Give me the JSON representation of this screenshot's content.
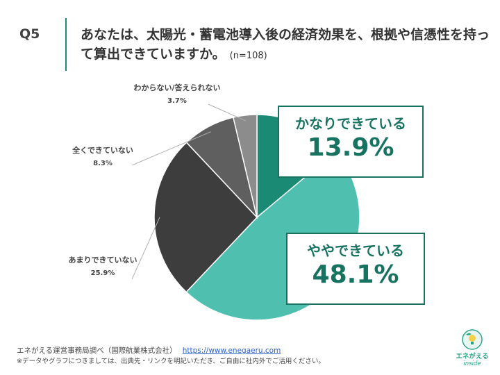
{
  "header": {
    "q_number": "Q5",
    "question": "あなたは、太陽光・蓄電池導入後の経済効果を、根拠や信憑性を持って算出できていますか。",
    "n_label": "(n=108)"
  },
  "chart_data": {
    "type": "pie",
    "title": "",
    "categories": [
      "かなりできている",
      "ややできている",
      "あまりできていない",
      "全くできていない",
      "わからない/答えられない"
    ],
    "values": [
      13.9,
      48.1,
      25.9,
      8.3,
      3.7
    ],
    "value_labels": [
      "13.9%",
      "48.1%",
      "25.9%",
      "8.3%",
      "3.7%"
    ],
    "colors": [
      "#1a8a75",
      "#4fc0b0",
      "#3d3d3d",
      "#5f5f5f",
      "#8c8c8c"
    ],
    "start": "12 o'clock, clockwise"
  },
  "callouts": {
    "kanari": {
      "label": "かなりできている",
      "pct": "13.9%"
    },
    "yaya": {
      "label": "ややできている",
      "pct": "48.1%"
    }
  },
  "side_labels": {
    "amari": {
      "label": "あまりできていない",
      "pct": "25.9%"
    },
    "mattaku": {
      "label": "全くできていない",
      "pct": "8.3%"
    },
    "wakaranai": {
      "label": "わからない/答えられない",
      "pct": "3.7%"
    }
  },
  "footer": {
    "source": "エネがえる運営事務局調べ（国際航業株式会社）",
    "url": "https://www.enegaeru.com",
    "note": "※データやグラフにつきましては、出典先・リンクを明記いただき、ご自由に社内外でご活用ください。"
  },
  "logo": {
    "name": "エネがえる",
    "sub": "inside",
    "icon": "leaf-bulb-icon"
  }
}
